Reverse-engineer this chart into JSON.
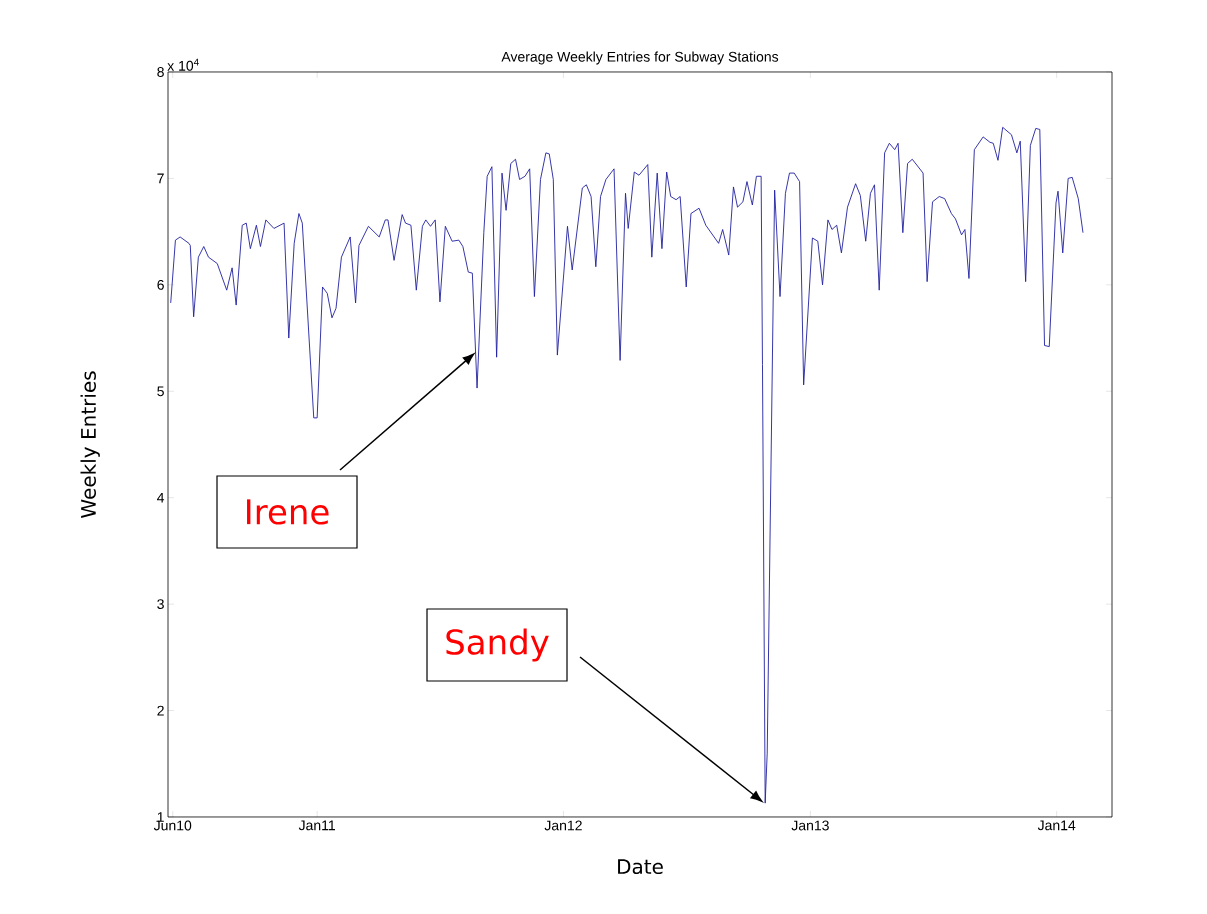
{
  "chart_data": {
    "type": "line",
    "title": "Average Weekly Entries for Subway Stations",
    "xlabel": "Date",
    "ylabel": "Weekly Entries",
    "color": "#2020a0",
    "x": [
      "2010-05-29",
      "2010-06-05",
      "2010-06-12",
      "2010-06-25",
      "2010-06-27",
      "2010-07-02",
      "2010-07-09",
      "2010-07-17",
      "2010-07-24",
      "2010-08-06",
      "2010-08-20",
      "2010-08-28",
      "2010-09-03",
      "2010-09-12",
      "2010-09-18",
      "2010-09-24",
      "2010-10-03",
      "2010-10-09",
      "2010-10-17",
      "2010-10-29",
      "2010-11-13",
      "2010-11-20",
      "2010-11-28",
      "2010-12-05",
      "2010-12-10",
      "2010-12-27",
      "2011-01-01",
      "2011-01-09",
      "2011-01-16",
      "2011-01-23",
      "2011-01-29",
      "2011-02-06",
      "2011-02-19",
      "2011-02-27",
      "2011-03-04",
      "2011-03-18",
      "2011-04-03",
      "2011-04-12",
      "2011-04-16",
      "2011-04-25",
      "2011-05-07",
      "2011-05-12",
      "2011-05-20",
      "2011-05-28",
      "2011-06-06",
      "2011-06-11",
      "2011-06-18",
      "2011-06-25",
      "2011-07-02",
      "2011-07-10",
      "2011-07-20",
      "2011-07-30",
      "2011-08-05",
      "2011-08-13",
      "2011-08-19",
      "2011-08-26",
      "2011-09-05",
      "2011-09-10",
      "2011-09-17",
      "2011-09-24",
      "2011-10-02",
      "2011-10-08",
      "2011-10-15",
      "2011-10-22",
      "2011-10-28",
      "2011-11-05",
      "2011-11-12",
      "2011-11-19",
      "2011-11-28",
      "2011-12-06",
      "2011-12-11",
      "2011-12-17",
      "2011-12-23",
      "2012-01-07",
      "2012-01-14",
      "2012-01-29",
      "2012-02-04",
      "2012-02-11",
      "2012-02-18",
      "2012-02-25",
      "2012-03-04",
      "2012-03-16",
      "2012-03-25",
      "2012-04-02",
      "2012-04-06",
      "2012-04-15",
      "2012-04-22",
      "2012-05-05",
      "2012-05-11",
      "2012-05-19",
      "2012-05-26",
      "2012-06-02",
      "2012-06-08",
      "2012-06-16",
      "2012-06-22",
      "2012-07-01",
      "2012-07-08",
      "2012-07-20",
      "2012-07-30",
      "2012-08-18",
      "2012-08-24",
      "2012-09-02",
      "2012-09-09",
      "2012-09-15",
      "2012-09-23",
      "2012-09-29",
      "2012-10-07",
      "2012-10-13",
      "2012-10-20",
      "2012-10-22",
      "2012-10-26",
      "2012-10-29",
      "2012-11-09",
      "2012-11-17",
      "2012-11-25",
      "2012-12-01",
      "2012-12-08",
      "2012-12-16",
      "2012-12-22",
      "2013-01-04",
      "2013-01-12",
      "2013-01-19",
      "2013-01-27",
      "2013-02-02",
      "2013-02-09",
      "2013-02-16",
      "2013-02-25",
      "2013-03-09",
      "2013-03-16",
      "2013-03-24",
      "2013-03-31",
      "2013-04-06",
      "2013-04-13",
      "2013-04-21",
      "2013-04-28",
      "2013-05-06",
      "2013-05-11",
      "2013-05-18",
      "2013-05-25",
      "2013-06-01",
      "2013-06-17",
      "2013-06-23",
      "2013-07-01",
      "2013-07-11",
      "2013-07-19",
      "2013-07-29",
      "2013-08-04",
      "2013-08-13",
      "2013-08-18",
      "2013-08-24",
      "2013-09-01",
      "2013-09-14",
      "2013-09-24",
      "2013-09-29",
      "2013-10-06",
      "2013-10-13",
      "2013-10-26",
      "2013-11-03",
      "2013-11-08",
      "2013-11-16",
      "2013-11-23",
      "2013-12-01",
      "2013-12-07",
      "2013-12-14",
      "2013-12-21",
      "2013-12-31",
      "2014-01-03",
      "2014-01-10",
      "2014-01-18",
      "2014-01-24",
      "2014-02-02",
      "2014-02-09"
    ],
    "values": [
      5.83,
      6.42,
      6.45,
      6.39,
      6.37,
      5.7,
      6.26,
      6.36,
      6.26,
      6.2,
      5.95,
      6.16,
      5.81,
      6.56,
      6.58,
      6.34,
      6.56,
      6.36,
      6.61,
      6.53,
      6.58,
      5.5,
      6.39,
      6.67,
      6.58,
      4.75,
      4.75,
      5.98,
      5.92,
      5.69,
      5.78,
      6.26,
      6.45,
      5.83,
      6.37,
      6.55,
      6.45,
      6.61,
      6.61,
      6.23,
      6.66,
      6.58,
      6.56,
      5.95,
      6.55,
      6.61,
      6.55,
      6.61,
      5.84,
      6.55,
      6.41,
      6.42,
      6.36,
      6.12,
      6.11,
      5.03,
      6.49,
      7.02,
      7.11,
      5.32,
      7.05,
      6.7,
      7.14,
      7.18,
      6.99,
      7.02,
      7.09,
      5.89,
      6.99,
      7.24,
      7.23,
      6.99,
      5.34,
      6.55,
      6.14,
      6.91,
      6.94,
      6.83,
      6.17,
      6.83,
      6.99,
      7.09,
      5.29,
      6.86,
      6.53,
      7.06,
      7.03,
      7.13,
      6.26,
      7.05,
      6.34,
      7.06,
      6.83,
      6.8,
      6.83,
      5.98,
      6.67,
      6.72,
      6.56,
      6.39,
      6.52,
      6.28,
      6.92,
      6.73,
      6.78,
      6.97,
      6.75,
      7.02,
      7.02,
      5.25,
      1.13,
      1.6,
      6.89,
      5.89,
      6.86,
      7.05,
      7.05,
      6.97,
      5.06,
      6.44,
      6.41,
      6.0,
      6.61,
      6.52,
      6.56,
      6.3,
      6.73,
      6.95,
      6.84,
      6.41,
      6.86,
      6.94,
      5.95,
      7.24,
      7.33,
      7.27,
      7.33,
      6.49,
      7.14,
      7.18,
      7.05,
      6.03,
      6.78,
      6.83,
      6.81,
      6.67,
      6.62,
      6.47,
      6.52,
      6.06,
      7.27,
      7.39,
      7.34,
      7.33,
      7.17,
      7.48,
      7.41,
      7.24,
      7.35,
      6.03,
      7.31,
      7.47,
      7.46,
      5.43,
      5.42,
      6.77,
      6.88,
      6.3,
      7.0,
      7.01,
      6.81,
      6.49
    ],
    "xlim": [
      "2010-05-25",
      "2014-03-24"
    ],
    "xticks": [
      {
        "value": "2010-06-01",
        "label": "Jun10"
      },
      {
        "value": "2011-01-01",
        "label": "Jan11"
      },
      {
        "value": "2012-01-01",
        "label": "Jan12"
      },
      {
        "value": "2013-01-01",
        "label": "Jan13"
      },
      {
        "value": "2014-01-01",
        "label": "Jan14"
      }
    ],
    "ylim": [
      1,
      8
    ],
    "yticks": [
      1,
      2,
      3,
      4,
      5,
      6,
      7,
      8
    ],
    "annotations": [
      "x 10$^{4}$",
      "Irene",
      "Sandy"
    ]
  }
}
